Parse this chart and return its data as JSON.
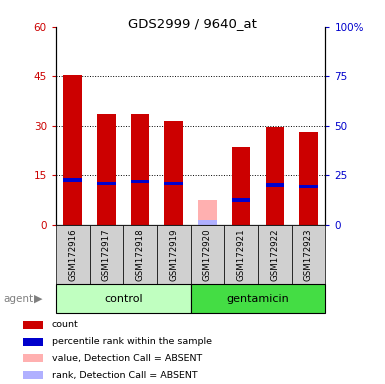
{
  "title": "GDS2999 / 9640_at",
  "samples": [
    "GSM172916",
    "GSM172917",
    "GSM172918",
    "GSM172919",
    "GSM172920",
    "GSM172921",
    "GSM172922",
    "GSM172923"
  ],
  "groups": [
    "control",
    "control",
    "control",
    "control",
    "gentamicin",
    "gentamicin",
    "gentamicin",
    "gentamicin"
  ],
  "red_values": [
    45.5,
    33.5,
    33.5,
    31.5,
    0.0,
    23.5,
    29.5,
    28.0
  ],
  "blue_values": [
    13.5,
    12.5,
    13.0,
    12.5,
    0.0,
    7.5,
    12.0,
    11.5
  ],
  "absent_value": [
    0.0,
    0.0,
    0.0,
    0.0,
    7.5,
    0.0,
    0.0,
    0.0
  ],
  "absent_rank": [
    0.0,
    0.0,
    0.0,
    0.0,
    1.5,
    0.0,
    0.0,
    0.0
  ],
  "color_red": "#cc0000",
  "color_blue": "#0000cc",
  "color_absent_value": "#ffb0b0",
  "color_absent_rank": "#b0b0ff",
  "color_control_bg": "#c0ffc0",
  "color_gentamicin_bg": "#44dd44",
  "color_sample_bg": "#d0d0d0",
  "color_plot_bg": "#ffffff",
  "ylim_left": [
    0,
    60
  ],
  "ylim_right": [
    0,
    100
  ],
  "yticks_left": [
    0,
    15,
    30,
    45,
    60
  ],
  "yticks_right": [
    0,
    25,
    50,
    75,
    100
  ],
  "ytick_labels_left": [
    "0",
    "15",
    "30",
    "45",
    "60"
  ],
  "ytick_labels_right": [
    "0",
    "25",
    "50",
    "75",
    "100%"
  ],
  "bar_width": 0.55,
  "blue_bar_height": 1.0,
  "legend_items": [
    {
      "color": "#cc0000",
      "label": "count"
    },
    {
      "color": "#0000cc",
      "label": "percentile rank within the sample"
    },
    {
      "color": "#ffb0b0",
      "label": "value, Detection Call = ABSENT"
    },
    {
      "color": "#b0b0ff",
      "label": "rank, Detection Call = ABSENT"
    }
  ]
}
